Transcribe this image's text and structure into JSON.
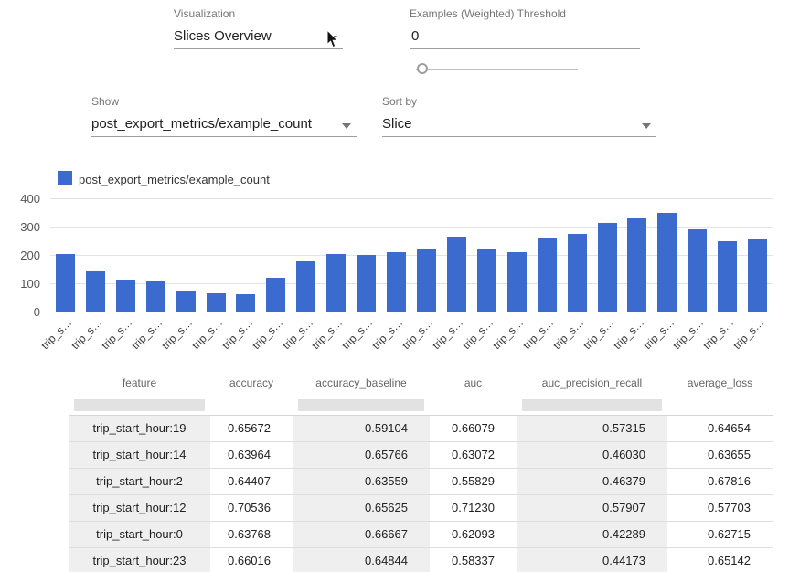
{
  "controls": {
    "visualization": {
      "label": "Visualization",
      "value": "Slices Overview"
    },
    "threshold": {
      "label": "Examples (Weighted) Threshold",
      "value": "0"
    },
    "show": {
      "label": "Show",
      "value": "post_export_metrics/example_count"
    },
    "sort_by": {
      "label": "Sort by",
      "value": "Slice"
    }
  },
  "chart_data": {
    "type": "bar",
    "legend": "post_export_metrics/example_count",
    "series_color": "#3b6bce",
    "categories": [
      "trip_s…",
      "trip_s…",
      "trip_s…",
      "trip_s…",
      "trip_s…",
      "trip_s…",
      "trip_s…",
      "trip_s…",
      "trip_s…",
      "trip_s…",
      "trip_s…",
      "trip_s…",
      "trip_s…",
      "trip_s…",
      "trip_s…",
      "trip_s…",
      "trip_s…",
      "trip_s…",
      "trip_s…",
      "trip_s…",
      "trip_s…",
      "trip_s…",
      "trip_s…",
      "trip_s…"
    ],
    "values": [
      205,
      142,
      113,
      110,
      75,
      65,
      60,
      120,
      178,
      205,
      200,
      210,
      220,
      265,
      220,
      210,
      260,
      275,
      312,
      330,
      350,
      290,
      250,
      255
    ],
    "ylim": [
      0,
      400
    ],
    "yticks": [
      0,
      100,
      200,
      300,
      400
    ],
    "grid": true,
    "legend_position": "top-left"
  },
  "table": {
    "columns": [
      "feature",
      "accuracy",
      "accuracy_baseline",
      "auc",
      "auc_precision_recall",
      "average_loss"
    ],
    "rows": [
      [
        "trip_start_hour:19",
        "0.65672",
        "0.59104",
        "0.66079",
        "0.57315",
        "0.64654"
      ],
      [
        "trip_start_hour:14",
        "0.63964",
        "0.65766",
        "0.63072",
        "0.46030",
        "0.63655"
      ],
      [
        "trip_start_hour:2",
        "0.64407",
        "0.63559",
        "0.55829",
        "0.46379",
        "0.67816"
      ],
      [
        "trip_start_hour:12",
        "0.70536",
        "0.65625",
        "0.71230",
        "0.57907",
        "0.57703"
      ],
      [
        "trip_start_hour:0",
        "0.63768",
        "0.66667",
        "0.62093",
        "0.42289",
        "0.62715"
      ],
      [
        "trip_start_hour:23",
        "0.66016",
        "0.64844",
        "0.58337",
        "0.44173",
        "0.65142"
      ]
    ]
  }
}
